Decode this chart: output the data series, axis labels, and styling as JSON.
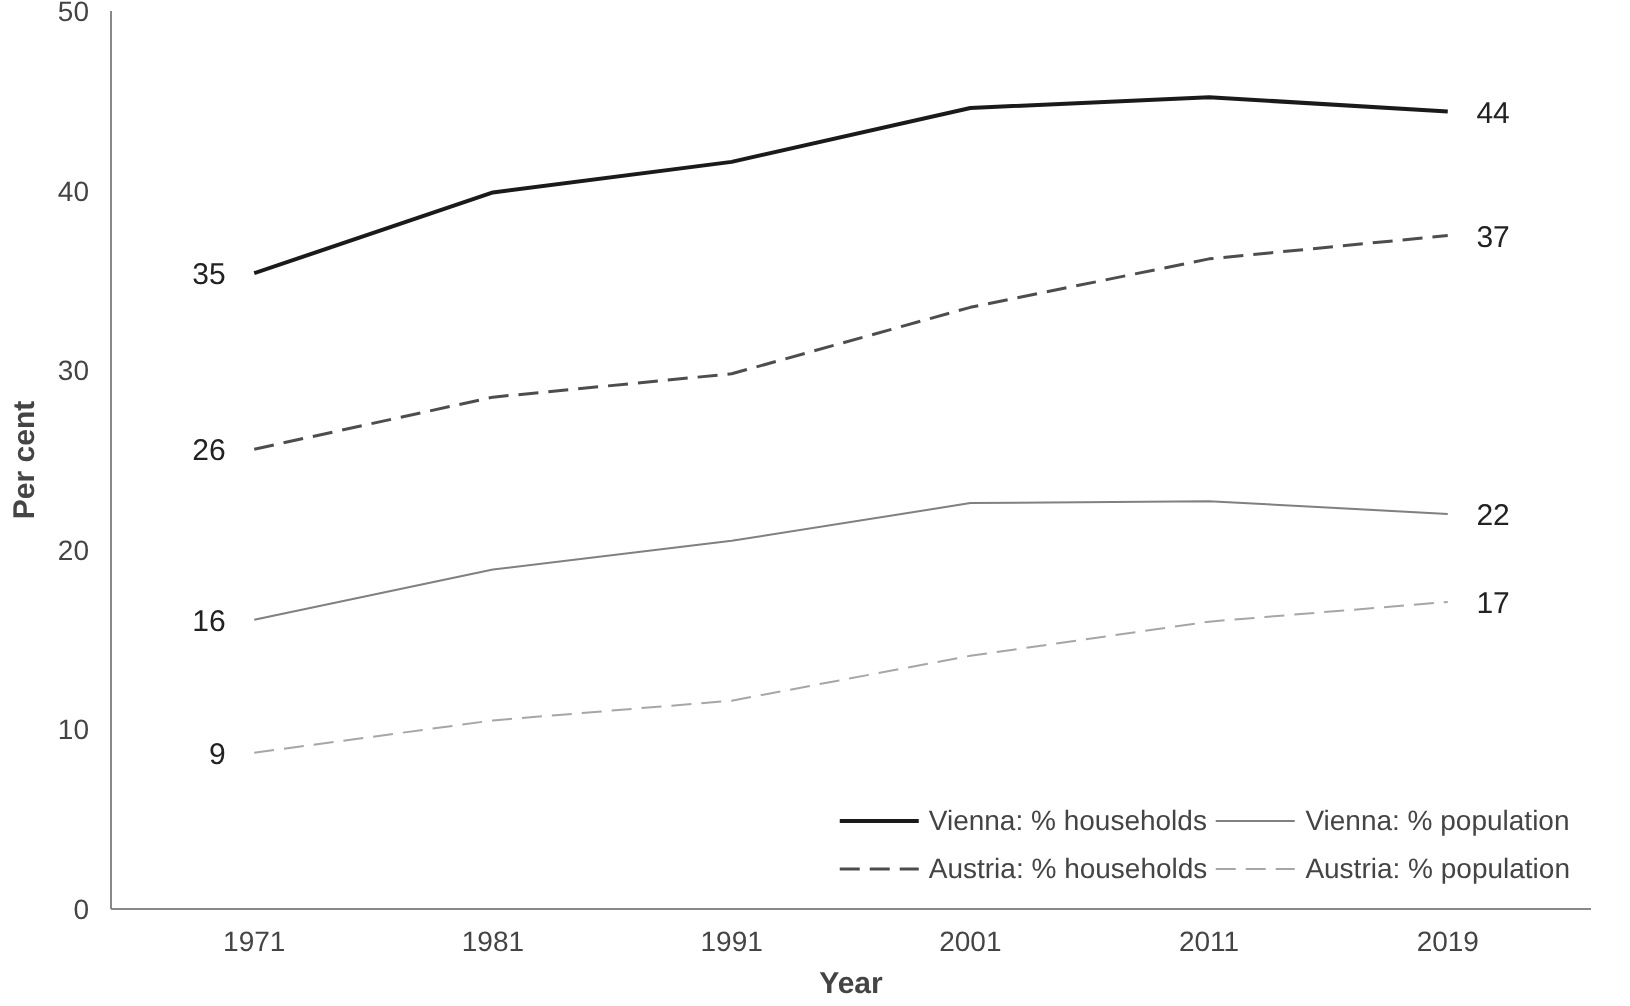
{
  "chart_data": {
    "type": "line",
    "xlabel": "Year",
    "ylabel": "Per cent",
    "categories": [
      "1971",
      "1981",
      "1991",
      "2001",
      "2011",
      "2019"
    ],
    "ylim": [
      0,
      50
    ],
    "yticks": [
      0,
      10,
      20,
      30,
      40,
      50
    ],
    "grid": false,
    "legend": "bottom right",
    "marker": "none",
    "series": [
      {
        "name": "Vienna: % households",
        "color": "#1a1a1a",
        "line_style": "solid",
        "values": [
          35.4,
          39.9,
          41.6,
          44.6,
          45.2,
          44.4
        ],
        "value_labels": [
          "35",
          null,
          null,
          null,
          null,
          "44"
        ]
      },
      {
        "name": "Austria: % households",
        "color": "#4d4d4d",
        "line_style": "dashed",
        "values": [
          25.6,
          28.5,
          29.8,
          33.5,
          36.2,
          37.5
        ],
        "value_labels": [
          "26",
          null,
          null,
          null,
          null,
          "37"
        ]
      },
      {
        "name": "Vienna: % population",
        "color": "#808080",
        "line_style": "solid",
        "values": [
          16.1,
          18.9,
          20.5,
          22.6,
          22.7,
          22.0
        ],
        "value_labels": [
          "16",
          null,
          null,
          null,
          null,
          "22"
        ]
      },
      {
        "name": "Austria: % population",
        "color": "#a6a6a6",
        "line_style": "dashed",
        "values": [
          8.7,
          10.5,
          11.6,
          14.1,
          16.0,
          17.1
        ],
        "value_labels": [
          "9",
          null,
          null,
          null,
          null,
          "17"
        ]
      }
    ]
  }
}
